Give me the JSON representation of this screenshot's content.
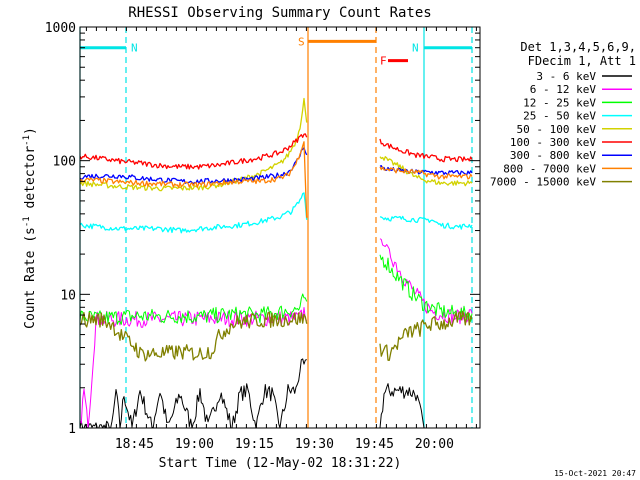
{
  "chart_data": {
    "type": "line",
    "title": "RHESSI Observing Summary Count Rates",
    "xlabel": "Start Time (12-May-02 18:31:22)",
    "ylabel_main": "Count Rate (s",
    "ylabel_sup": "-1",
    "ylabel_mid": " detector",
    "ylabel_sup2": "-1",
    "ylabel_end": ")",
    "y_scale": "log",
    "ylim": [
      1,
      1000
    ],
    "xlim_minutes": [
      0,
      100
    ],
    "x_tick_labels": [
      {
        "label": "18:45",
        "min": 13.6
      },
      {
        "label": "19:00",
        "min": 28.6
      },
      {
        "label": "19:15",
        "min": 43.6
      },
      {
        "label": "19:30",
        "min": 58.6
      },
      {
        "label": "19:45",
        "min": 73.6
      },
      {
        "label": "20:00",
        "min": 88.6
      }
    ],
    "y_tick_labels": [
      {
        "label": "1",
        "value": 1
      },
      {
        "label": "10",
        "value": 10
      },
      {
        "label": "100",
        "value": 100
      },
      {
        "label": "1000",
        "value": 1000
      }
    ],
    "legend": {
      "header_line1": "Det 1,3,4,5,6,9,",
      "header_line2": "FDecim 1, Att 1",
      "placement": "right"
    },
    "timestamp": "15-Oct-2021 20:47",
    "flags": [
      {
        "label": "N",
        "color": "#00e5e5",
        "start_min": 0,
        "end_min": 11.5,
        "level": 700
      },
      {
        "label": "N",
        "color": "#00e5e5",
        "start_min": 86,
        "end_min": 98,
        "level": 700
      },
      {
        "label": "S",
        "color": "#ff8000",
        "start_min": 57,
        "end_min": 74,
        "level": 780
      },
      {
        "label": "F",
        "color": "#ff0000",
        "start_min": 77,
        "end_min": 82,
        "level": 560
      }
    ],
    "vertical_lines": [
      {
        "min": 0,
        "color": "#00e5e5",
        "dash": false
      },
      {
        "min": 11.5,
        "color": "#00e5e5",
        "dash": true
      },
      {
        "min": 57,
        "color": "#ff8000",
        "dash": false
      },
      {
        "min": 74,
        "color": "#ff8000",
        "dash": true
      },
      {
        "min": 86,
        "color": "#00e5e5",
        "dash": false
      },
      {
        "min": 98,
        "color": "#00e5e5",
        "dash": true
      }
    ],
    "series": [
      {
        "name": "3 - 6 keV",
        "color": "#000000",
        "x": [
          0,
          8,
          9,
          10,
          11,
          13,
          15,
          18,
          20,
          22,
          25,
          28,
          30,
          32,
          35,
          38,
          40,
          42,
          44,
          46,
          48,
          50,
          52,
          54,
          55,
          56,
          57,
          75,
          76,
          77,
          78,
          80,
          82,
          84,
          86
        ],
        "y": [
          1,
          1,
          1.9,
          1,
          1.8,
          1,
          1.9,
          1,
          1.9,
          1,
          1.8,
          1,
          1.9,
          1,
          1.9,
          1,
          1.8,
          1.9,
          1,
          1.9,
          1.8,
          1,
          1.9,
          1.9,
          2.8,
          2.9,
          2.9,
          1,
          1.8,
          1.9,
          1.9,
          1.9,
          1.9,
          1.8,
          1
        ]
      },
      {
        "name": "6 - 12 keV",
        "color": "#ff00ff",
        "x": [
          0,
          1,
          2,
          4,
          20,
          35,
          50,
          55,
          56,
          57,
          75,
          76,
          77,
          78,
          80,
          82,
          84,
          86,
          88,
          90,
          92,
          94,
          96,
          98
        ],
        "y": [
          1,
          1.9,
          1,
          6.5,
          6.5,
          6.6,
          6.6,
          6.6,
          7.5,
          6.8,
          25,
          24,
          22,
          19,
          15,
          12,
          10,
          8.5,
          7.5,
          7.2,
          7.0,
          6.8,
          7.0,
          7.2
        ]
      },
      {
        "name": "12 - 25 keV",
        "color": "#00ff00",
        "x": [
          0,
          5,
          10,
          15,
          20,
          25,
          30,
          35,
          40,
          45,
          50,
          55,
          56,
          57,
          75,
          76,
          77,
          78,
          80,
          82,
          84,
          86,
          88,
          90,
          92,
          94,
          96,
          98
        ],
        "y": [
          6.8,
          6.6,
          6.8,
          6.9,
          6.8,
          6.9,
          6.8,
          7.0,
          7.1,
          7.0,
          7.4,
          7.8,
          9.5,
          7.0,
          19,
          18,
          17,
          15,
          13,
          11,
          9.5,
          8.5,
          7.8,
          7.5,
          7.3,
          7.2,
          7.1,
          7.2
        ]
      },
      {
        "name": "25 - 50 keV",
        "color": "#00ffff",
        "x": [
          0,
          5,
          10,
          15,
          20,
          25,
          30,
          35,
          40,
          45,
          50,
          53,
          55,
          56,
          57,
          75,
          77,
          80,
          85,
          88,
          90,
          95,
          98
        ],
        "y": [
          33,
          32,
          31,
          31,
          31,
          30,
          31,
          32,
          33,
          35,
          38,
          42,
          50,
          60,
          30,
          38,
          37,
          37,
          36,
          36,
          33,
          32,
          33
        ]
      },
      {
        "name": "50 - 100 keV",
        "color": "#d2d200",
        "x": [
          0,
          5,
          10,
          15,
          20,
          25,
          30,
          35,
          40,
          45,
          50,
          52,
          54,
          55,
          56,
          57,
          75,
          77,
          80,
          84,
          86,
          88,
          90,
          95,
          98
        ],
        "y": [
          68,
          66,
          64,
          63,
          62,
          62,
          63,
          66,
          72,
          80,
          95,
          110,
          140,
          180,
          290,
          150,
          110,
          100,
          90,
          75,
          72,
          70,
          68,
          68,
          68
        ]
      },
      {
        "name": "100 - 300 keV",
        "color": "#ff0000",
        "x": [
          0,
          5,
          10,
          15,
          20,
          25,
          30,
          35,
          40,
          45,
          50,
          52,
          54,
          55,
          56,
          57,
          75,
          77,
          80,
          84,
          86,
          88,
          90,
          95,
          98
        ],
        "y": [
          108,
          104,
          99,
          96,
          92,
          90,
          90,
          93,
          99,
          105,
          115,
          125,
          140,
          150,
          160,
          145,
          140,
          130,
          120,
          110,
          108,
          106,
          103,
          102,
          102
        ]
      },
      {
        "name": "300 - 800 keV",
        "color": "#0000ff",
        "x": [
          0,
          5,
          10,
          15,
          20,
          25,
          30,
          35,
          40,
          45,
          50,
          52,
          54,
          55,
          56,
          57,
          75,
          77,
          80,
          84,
          86,
          88,
          90,
          95,
          98
        ],
        "y": [
          76,
          77,
          77,
          74,
          72,
          70,
          70,
          71,
          72,
          74,
          78,
          82,
          96,
          110,
          130,
          100,
          90,
          86,
          84,
          82,
          82,
          82,
          81,
          81,
          81
        ]
      },
      {
        "name": "800 - 7000 keV",
        "color": "#ff8000",
        "x": [
          0,
          5,
          10,
          15,
          20,
          25,
          30,
          35,
          40,
          45,
          50,
          52,
          54,
          55,
          56,
          57,
          75,
          77,
          80,
          84,
          86,
          88,
          90,
          95,
          98
        ],
        "y": [
          72,
          71,
          69,
          68,
          67,
          66,
          66,
          68,
          70,
          70,
          74,
          78,
          95,
          115,
          140,
          20,
          88,
          86,
          84,
          82,
          80,
          78,
          76,
          76,
          76
        ]
      },
      {
        "name": "7000 - 15000 keV",
        "color": "#808000",
        "x": [
          0,
          5,
          8,
          10,
          12,
          14,
          15,
          20,
          25,
          30,
          33,
          35,
          38,
          40,
          45,
          50,
          55,
          56,
          57,
          75,
          76,
          77,
          78,
          80,
          82,
          85,
          86,
          88,
          90,
          92,
          95,
          98
        ],
        "y": [
          6.5,
          6.5,
          6.0,
          5.0,
          4.5,
          4.0,
          3.6,
          3.6,
          3.7,
          3.6,
          3.8,
          5.0,
          6.0,
          6.2,
          6.4,
          6.5,
          6.6,
          6.6,
          6.5,
          4.0,
          3.8,
          3.6,
          3.8,
          4.5,
          5.2,
          5.5,
          5.8,
          6.0,
          6.0,
          6.2,
          6.5,
          6.5
        ]
      }
    ]
  }
}
